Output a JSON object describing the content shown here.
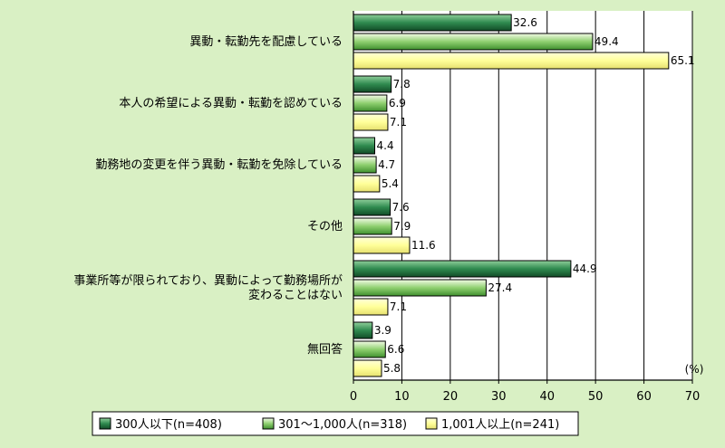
{
  "chart_data": {
    "type": "bar",
    "orientation": "horizontal",
    "categories": [
      [
        "異動・転勤先を配慮している"
      ],
      [
        "本人の希望による異動・転勤を認めている"
      ],
      [
        "勤務地の変更を伴う異動・転勤を免除している"
      ],
      [
        "その他"
      ],
      [
        "事業所等が限られており、異動によって勤務場所が",
        "変わることはない"
      ],
      [
        "無回答"
      ]
    ],
    "series": [
      {
        "name": "300人以下(n=408)",
        "values": [
          32.6,
          7.8,
          4.4,
          7.6,
          44.9,
          3.9
        ],
        "value_labels": [
          "32.6",
          "7.8",
          "4.4",
          "7.6",
          "44.9",
          "3.9"
        ],
        "color": "#1e6b3c"
      },
      {
        "name": "301～1,000人(n=318)",
        "values": [
          49.4,
          6.9,
          4.7,
          7.9,
          27.4,
          6.6
        ],
        "value_labels": [
          "49.4",
          "6.9",
          "4.7",
          "7.9",
          "27.4",
          "6.6"
        ],
        "color": "#5faf4a"
      },
      {
        "name": "1,001人以上(n=241)",
        "values": [
          65.1,
          7.1,
          5.4,
          11.6,
          7.1,
          5.8
        ],
        "value_labels": [
          "65.1",
          "7.1",
          "5.4",
          "11.6",
          "7.1",
          "5.8"
        ],
        "color": "#ffff99"
      }
    ],
    "xlim": [
      0,
      70
    ],
    "xticks": [
      0,
      10,
      20,
      30,
      40,
      50,
      60,
      70
    ],
    "unit_label": "(%)",
    "grid": true,
    "legend_placement": "bottom"
  }
}
